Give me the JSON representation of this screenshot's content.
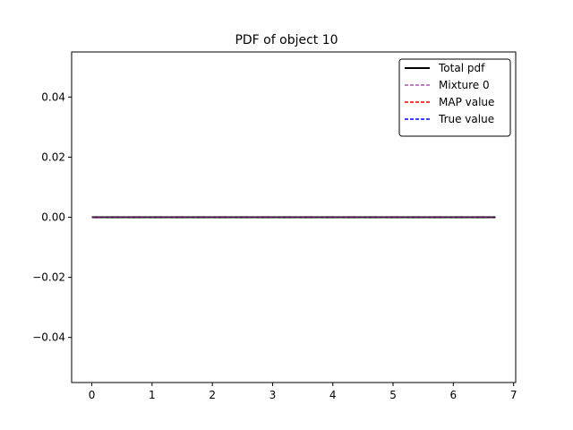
{
  "chart_data": {
    "type": "line",
    "title": "PDF of object 10",
    "xlabel": "",
    "ylabel": "",
    "xlim": [
      -0.335,
      7.035
    ],
    "ylim": [
      -0.055,
      0.055
    ],
    "x_ticks": [
      0,
      1,
      2,
      3,
      4,
      5,
      6,
      7
    ],
    "x_tick_labels": [
      "0",
      "1",
      "2",
      "3",
      "4",
      "5",
      "6",
      "7"
    ],
    "y_ticks": [
      -0.04,
      -0.02,
      0.0,
      0.02,
      0.04
    ],
    "y_tick_labels": [
      "−0.04",
      "−0.02",
      "0.00",
      "0.02",
      "0.04"
    ],
    "grid": false,
    "legend_position": "top-right",
    "series": [
      {
        "name": "Total pdf",
        "color": "#000000",
        "style": "solid",
        "x": [
          0,
          6.7
        ],
        "y": [
          0,
          0
        ]
      },
      {
        "name": "Mixture 0",
        "color": "#800080",
        "style": "dashed",
        "x": [
          0,
          6.7
        ],
        "y": [
          0,
          0
        ]
      },
      {
        "name": "MAP value",
        "color": "#ff0000",
        "style": "dashed",
        "x": [],
        "y": []
      },
      {
        "name": "True value",
        "color": "#0000ff",
        "style": "dashed",
        "x": [],
        "y": []
      }
    ]
  }
}
